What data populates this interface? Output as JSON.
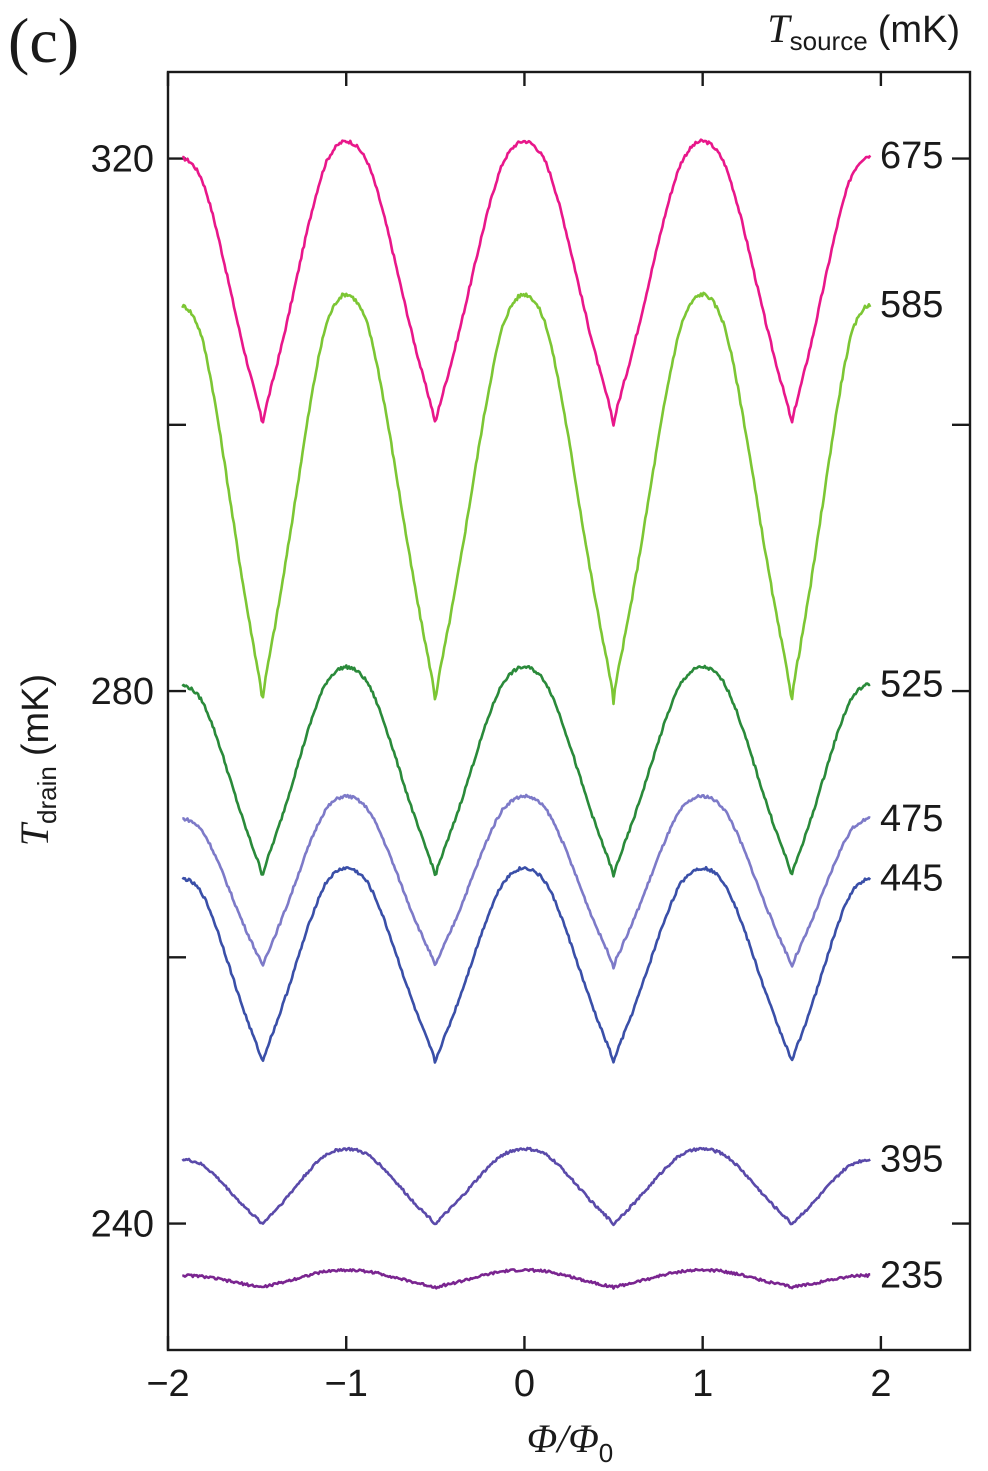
{
  "panel_label": "(c)",
  "chart_data": {
    "type": "line",
    "xlabel": {
      "numerator": "Φ",
      "slash": "/",
      "denominator": "Φ",
      "denominator_sub": "0"
    },
    "ylabel": {
      "symbol": "T",
      "sub": "drain",
      "unit": "(mK)"
    },
    "right_title": {
      "symbol": "T",
      "sub": "source",
      "unit": "(mK)"
    },
    "xlim": [
      -2,
      2.5
    ],
    "ylim": [
      230.5,
      326.5
    ],
    "x_ticks": [
      -2,
      -1,
      0,
      1,
      2
    ],
    "x_tick_labels": [
      "−2",
      "−1",
      "0",
      "1",
      "2"
    ],
    "y_ticks": [
      240,
      260,
      280,
      300,
      320
    ],
    "y_tick_labels": [
      "240",
      "",
      "280",
      "",
      "320"
    ],
    "grid": false,
    "x_range": [
      -1.92,
      1.94
    ],
    "dips": [
      -1.47,
      -0.5,
      0.5,
      1.5
    ],
    "peaks": [
      -1.0,
      0.0,
      1.0
    ],
    "series": [
      {
        "name": "675",
        "color": "#e8178a",
        "start": 320.0,
        "peak": 321.3,
        "dip": 299.9,
        "end": 320.2
      },
      {
        "name": "585",
        "color": "#7cc634",
        "start": 308.9,
        "peak": 309.8,
        "dip": 279.1,
        "end": 309.0
      },
      {
        "name": "525",
        "color": "#2a8a3a",
        "start": 280.4,
        "peak": 281.8,
        "dip": 266.0,
        "end": 280.5
      },
      {
        "name": "475",
        "color": "#7d7ac8",
        "start": 270.4,
        "peak": 272.1,
        "dip": 259.2,
        "end": 270.4
      },
      {
        "name": "445",
        "color": "#3a4fa8",
        "start": 265.9,
        "peak": 266.7,
        "dip": 252.0,
        "end": 265.9
      },
      {
        "name": "395",
        "color": "#5a4aaa",
        "start": 244.8,
        "peak": 245.6,
        "dip": 239.9,
        "end": 244.8
      },
      {
        "name": "235",
        "color": "#7a2590",
        "start": 236.1,
        "peak": 236.5,
        "dip": 235.2,
        "end": 236.1
      }
    ]
  }
}
